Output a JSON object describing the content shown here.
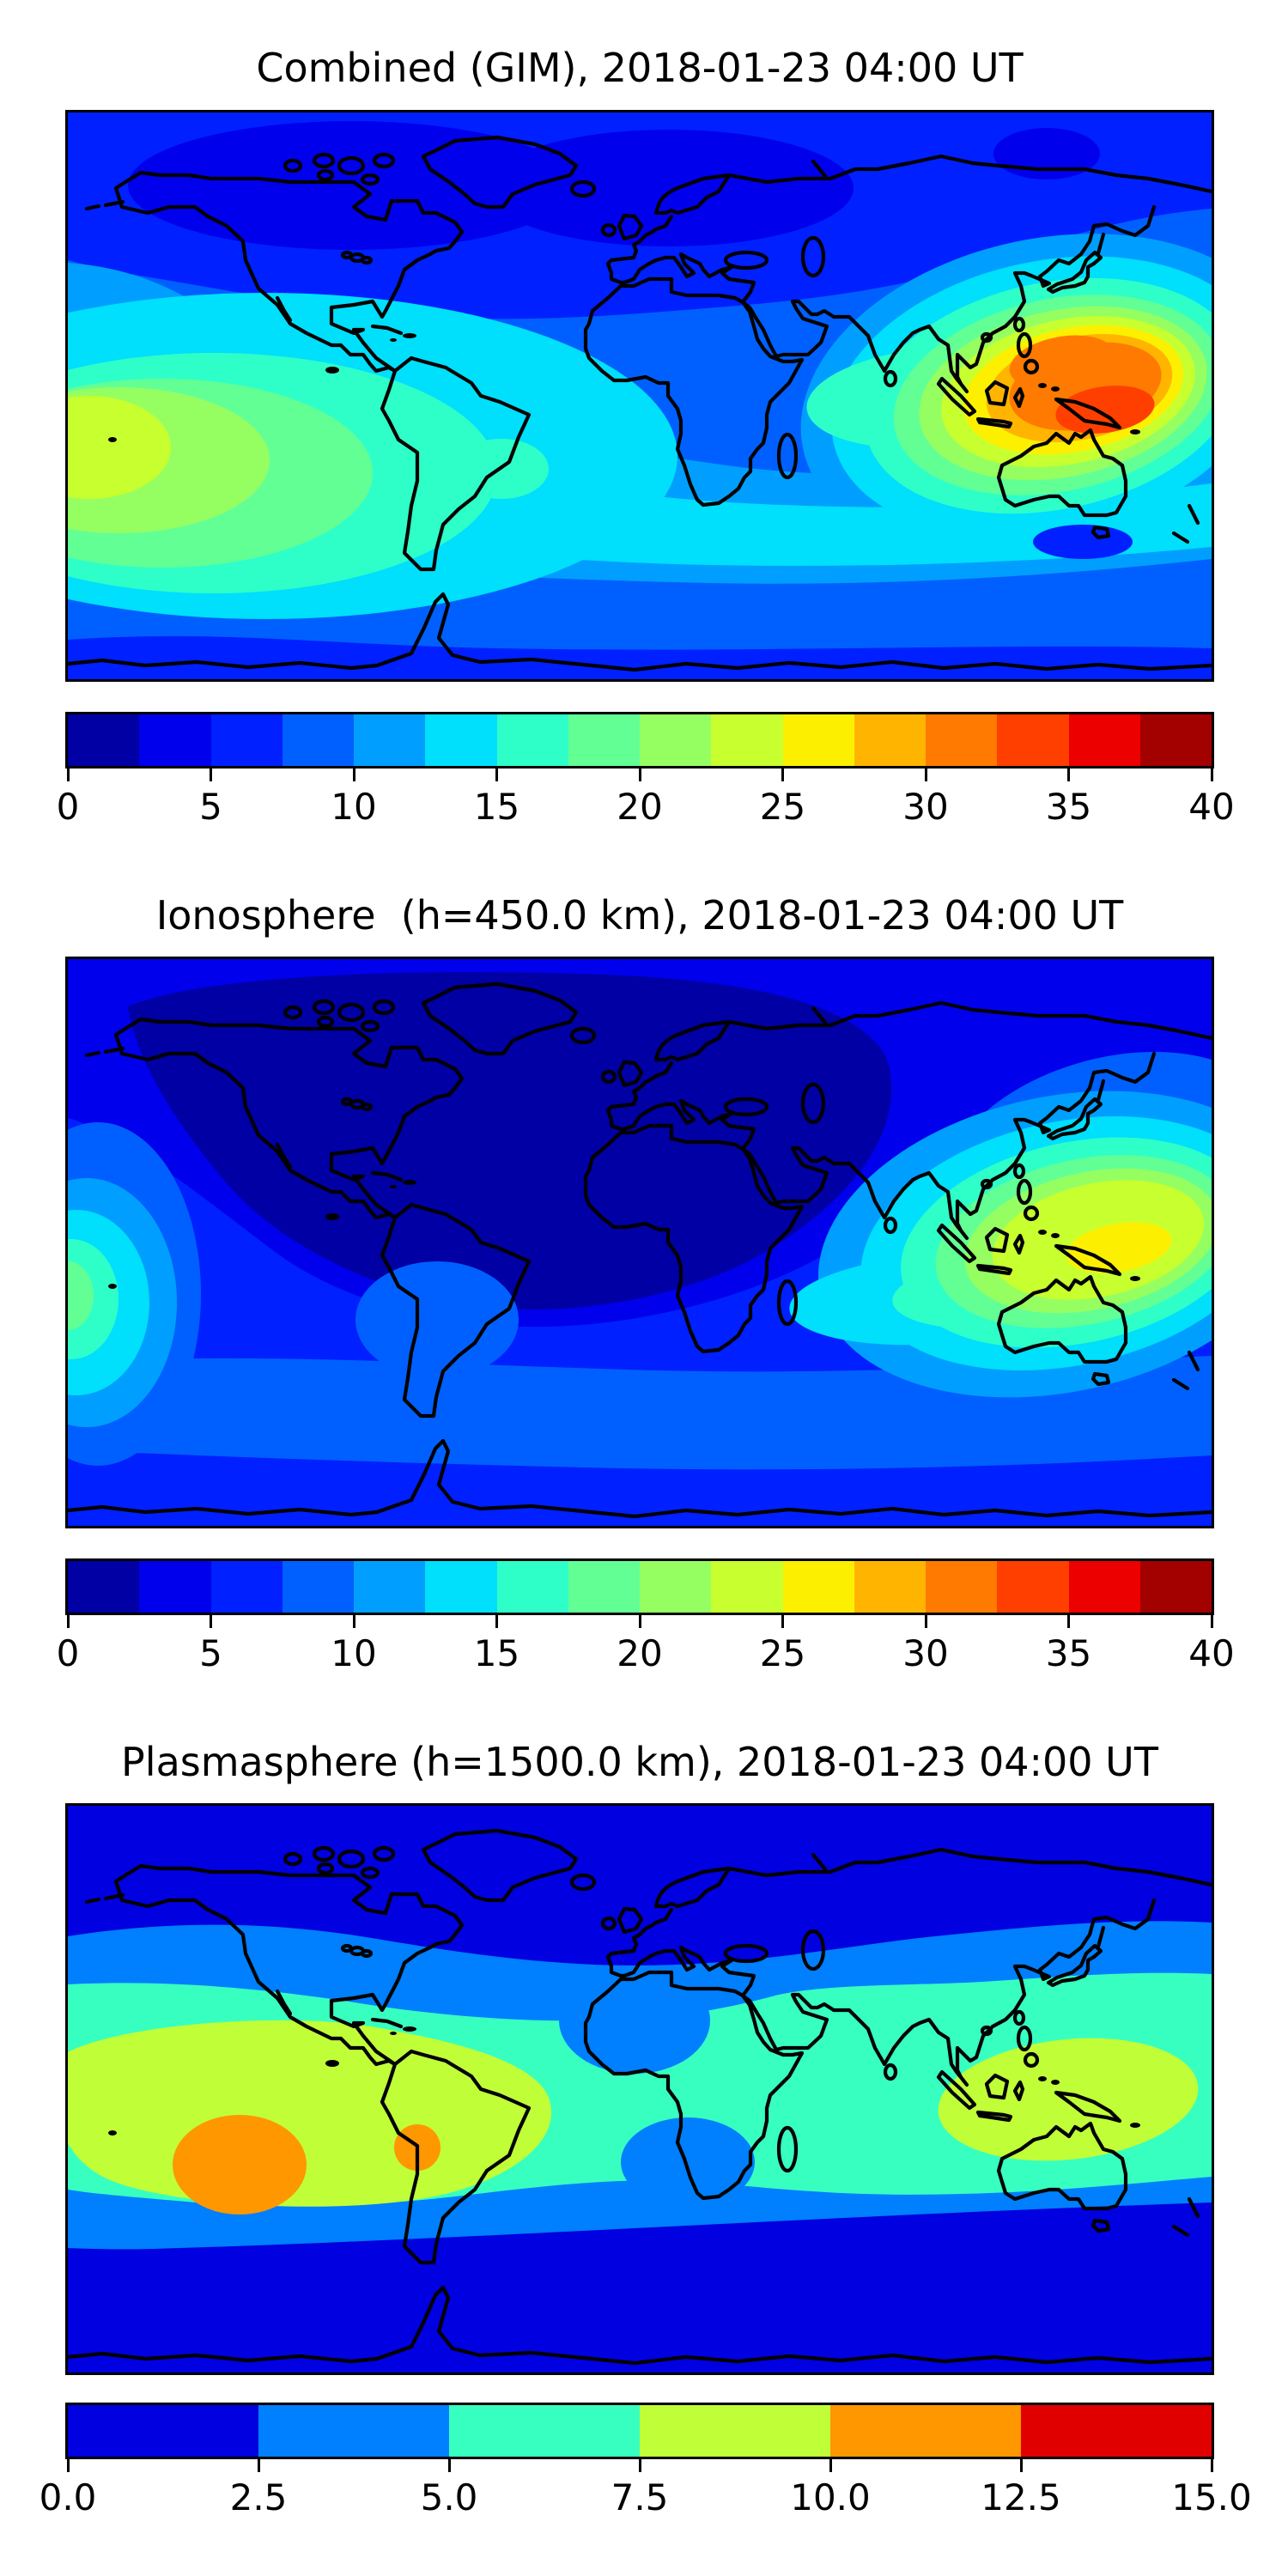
{
  "figure": {
    "background": "#ffffff",
    "frame_color": "#000000",
    "coastline_color": "#000000",
    "colormap_name": "jet"
  },
  "palettes": {
    "jet16": [
      "#0000A4",
      "#0000ED",
      "#0020FF",
      "#0060FF",
      "#009FFF",
      "#00DFFC",
      "#2EFFC8",
      "#62FF95",
      "#95FF62",
      "#C8FF2E",
      "#FCF000",
      "#FFB500",
      "#FF7A00",
      "#FF3F00",
      "#EC0000",
      "#A30000"
    ],
    "jet6": [
      "#0000E0",
      "#007FFF",
      "#37FFC0",
      "#C0FF37",
      "#FF9700",
      "#E00000"
    ]
  },
  "panels": [
    {
      "title": "Combined (GIM), 2018-01-23 04:00 UT",
      "colorbar": {
        "min": 0,
        "max": 40,
        "palette": "jet16",
        "tick_values": [
          0,
          5,
          10,
          15,
          20,
          25,
          30,
          35,
          40
        ],
        "tick_labels": [
          "0",
          "5",
          "10",
          "15",
          "20",
          "25",
          "30",
          "35",
          "40"
        ]
      }
    },
    {
      "title": "Ionosphere  (h=450.0 km), 2018-01-23 04:00 UT",
      "colorbar": {
        "min": 0,
        "max": 40,
        "palette": "jet16",
        "tick_values": [
          0,
          5,
          10,
          15,
          20,
          25,
          30,
          35,
          40
        ],
        "tick_labels": [
          "0",
          "5",
          "10",
          "15",
          "20",
          "25",
          "30",
          "35",
          "40"
        ]
      }
    },
    {
      "title": "Plasmasphere (h=1500.0 km), 2018-01-23 04:00 UT",
      "colorbar": {
        "min": 0,
        "max": 15,
        "palette": "jet6",
        "tick_values": [
          0,
          2.5,
          5,
          7.5,
          10,
          12.5,
          15
        ],
        "tick_labels": [
          "0.0",
          "2.5",
          "5.0",
          "7.5",
          "10.0",
          "12.5",
          "15.0"
        ]
      }
    }
  ],
  "chart_data": [
    {
      "type": "heatmap",
      "subtype": "filled-contour world map (equirectangular, lon -180..180, lat -90..90)",
      "title": "Combined (GIM), 2018-01-23 04:00 UT",
      "colormap": "jet",
      "levels": [
        0,
        2.5,
        5,
        7.5,
        10,
        12.5,
        15,
        17.5,
        20,
        22.5,
        25,
        27.5,
        30,
        32.5,
        35,
        37.5,
        40
      ],
      "colorbar_range": [
        0,
        40
      ],
      "colorbar_ticks": [
        0,
        5,
        10,
        15,
        20,
        25,
        30,
        35,
        40
      ],
      "legend_position": "horizontal colorbar below map",
      "grid": false,
      "features": [
        {
          "region": "maximum near New Guinea / west Pacific (~145E, 8S)",
          "value_range": [
            35,
            37.5
          ]
        },
        {
          "region": "enhancement ring over SE Asia, Philippines, N Australia",
          "value_range": [
            20,
            35
          ]
        },
        {
          "region": "secondary maximum at left edge, central-south Pacific (~178W, 18S)",
          "value_range": [
            20,
            22.5
          ]
        },
        {
          "region": "equatorial south Pacific tongue",
          "value_range": [
            12.5,
            20
          ]
        },
        {
          "region": "small enhancement off Peru coast (~78W, 12S)",
          "value_range": [
            12.5,
            15
          ]
        },
        {
          "region": "minimum band over N Canada, Greenland, N Europe, Siberia (lat > 50N)",
          "value_range": [
            2.5,
            5
          ]
        },
        {
          "region": "mid-latitude oceans / Africa / Eurasia background",
          "value_range": [
            5,
            10
          ]
        },
        {
          "region": "southern ocean and Antarctic band",
          "value_range": [
            2.5,
            7.5
          ]
        }
      ]
    },
    {
      "type": "heatmap",
      "subtype": "filled-contour world map (equirectangular, lon -180..180, lat -90..90)",
      "title": "Ionosphere  (h=450.0 km), 2018-01-23 04:00 UT",
      "colormap": "jet",
      "levels": [
        0,
        2.5,
        5,
        7.5,
        10,
        12.5,
        15,
        17.5,
        20,
        22.5,
        25,
        27.5,
        30,
        32.5,
        35,
        37.5,
        40
      ],
      "colorbar_range": [
        0,
        40
      ],
      "colorbar_ticks": [
        0,
        5,
        10,
        15,
        20,
        25,
        30,
        35,
        40
      ],
      "legend_position": "horizontal colorbar below map",
      "grid": false,
      "features": [
        {
          "region": "maximum near New Guinea / Solomon Sea (~150E, 5S)",
          "value_range": [
            22.5,
            25
          ]
        },
        {
          "region": "enhancement over maritime continent and N Australia",
          "value_range": [
            12.5,
            22.5
          ]
        },
        {
          "region": "deep minimum over N America, N Atlantic, Europe",
          "value_range": [
            0,
            2.5
          ]
        },
        {
          "region": "broad night-side low (most of Americas, Atlantic, Africa)",
          "value_range": [
            2.5,
            5
          ]
        },
        {
          "region": "left-edge equatorial Pacific patch (~180W, 10S)",
          "value_range": [
            15,
            17.5
          ]
        },
        {
          "region": "small lightening over Peru / Bolivia",
          "value_range": [
            5,
            7.5
          ]
        },
        {
          "region": "southern mid-latitude ocean band",
          "value_range": [
            7.5,
            10
          ]
        },
        {
          "region": "Antarctic coastal band",
          "value_range": [
            5,
            7.5
          ]
        }
      ]
    },
    {
      "type": "heatmap",
      "subtype": "filled-contour world map (equirectangular, lon -180..180, lat -90..90)",
      "title": "Plasmasphere (h=1500.0 km), 2018-01-23 04:00 UT",
      "colormap": "jet",
      "levels": [
        0,
        2.5,
        5,
        7.5,
        10,
        12.5,
        15
      ],
      "colorbar_range": [
        0,
        15
      ],
      "colorbar_ticks": [
        0,
        2.5,
        5,
        7.5,
        10,
        12.5,
        15
      ],
      "legend_position": "horizontal colorbar below map",
      "grid": false,
      "features": [
        {
          "region": "maximum cell SE Pacific (~115W, 20S)",
          "value_range": [
            10,
            12.5
          ]
        },
        {
          "region": "small maximum cell over Peru (~75W, 12S)",
          "value_range": [
            10,
            12.5
          ]
        },
        {
          "region": "broad plume SE Pacific / South America",
          "value_range": [
            7.5,
            10
          ]
        },
        {
          "region": "west Pacific / maritime continent blob (100E-175E, 5N-20S)",
          "value_range": [
            7.5,
            10
          ]
        },
        {
          "region": "global tropical belt (~35N to 45S)",
          "value_range": [
            5,
            7.5
          ]
        },
        {
          "region": "dips over NW Africa and Angola region",
          "value_range": [
            2.5,
            5
          ]
        },
        {
          "region": "mid-latitude bands both hemispheres",
          "value_range": [
            2.5,
            5
          ]
        },
        {
          "region": "polar caps north of ~55N and south of ~55S",
          "value_range": [
            0,
            2.5
          ]
        }
      ]
    }
  ]
}
